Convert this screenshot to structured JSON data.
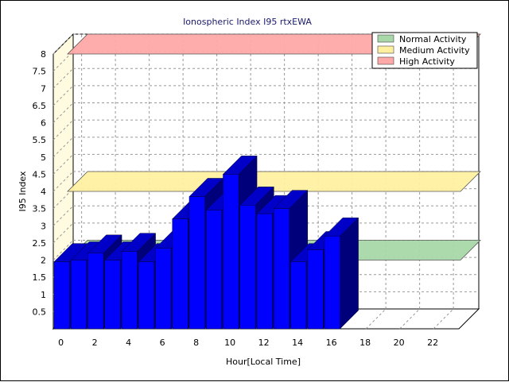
{
  "chart_data": {
    "type": "bar",
    "title": "Ionospheric Index I95 rtxEWA",
    "xlabel": "Hour[Local Time]",
    "ylabel": "I95 Index",
    "x_ticks": [
      "0",
      "2",
      "4",
      "6",
      "8",
      "10",
      "12",
      "14",
      "16",
      "18",
      "20",
      "22"
    ],
    "y_ticks": [
      "0.5",
      "1",
      "1.5",
      "2",
      "2.5",
      "3",
      "3.5",
      "4",
      "4.5",
      "5",
      "5.5",
      "6",
      "6.5",
      "7",
      "7.5",
      "8"
    ],
    "ylim": [
      0,
      8
    ],
    "xlim": [
      -0.5,
      23.5
    ],
    "x": [
      0,
      1,
      2,
      3,
      4,
      5,
      6,
      7,
      8,
      9,
      10,
      11,
      12,
      13,
      14,
      15,
      16
    ],
    "values": [
      1.95,
      2.0,
      2.2,
      2.0,
      2.25,
      1.95,
      2.35,
      3.2,
      3.85,
      3.45,
      4.5,
      3.6,
      3.35,
      3.5,
      1.95,
      2.3,
      2.7
    ],
    "bar_color": "#0000ff",
    "bands": [
      {
        "name": "Normal Activity",
        "value": 2.0,
        "color": "#a8d8a8"
      },
      {
        "name": "Medium Activity",
        "value": 4.0,
        "color": "#fff0a0"
      },
      {
        "name": "High Activity",
        "value": 8.0,
        "color": "#ffa8a8"
      }
    ],
    "legend_position": "top-right",
    "grid": true
  }
}
